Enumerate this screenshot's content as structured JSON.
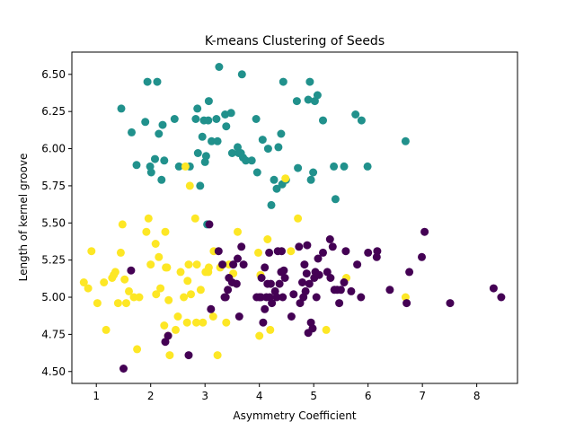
{
  "chart_data": {
    "type": "scatter",
    "title": "K-means Clustering of Seeds",
    "xlabel": "Asymmetry Coefficient",
    "ylabel": "Length of kernel groove",
    "xlim": [
      0.55,
      8.75
    ],
    "ylim": [
      4.42,
      6.65
    ],
    "x_ticks": [
      1,
      2,
      3,
      4,
      5,
      6,
      7,
      8
    ],
    "y_ticks": [
      4.5,
      4.75,
      5.0,
      5.25,
      5.5,
      5.75,
      6.0,
      6.25,
      6.5
    ],
    "x_tick_labels": [
      "1",
      "2",
      "3",
      "4",
      "5",
      "6",
      "7",
      "8"
    ],
    "y_tick_labels": [
      "4.50",
      "4.75",
      "5.00",
      "5.25",
      "5.50",
      "5.75",
      "6.00",
      "6.25",
      "6.50"
    ],
    "grid": false,
    "legend": "none",
    "colors": {
      "cluster_purple": "#440154",
      "cluster_teal": "#21918c",
      "cluster_yellow": "#fde725"
    },
    "series": [
      {
        "color": "#21918c",
        "points": [
          [
            1.46,
            6.27
          ],
          [
            1.65,
            6.11
          ],
          [
            1.74,
            5.89
          ],
          [
            1.9,
            6.18
          ],
          [
            1.94,
            6.45
          ],
          [
            1.99,
            5.88
          ],
          [
            2.01,
            5.84
          ],
          [
            2.08,
            5.93
          ],
          [
            2.12,
            6.45
          ],
          [
            2.15,
            6.1
          ],
          [
            2.2,
            5.79
          ],
          [
            2.22,
            6.16
          ],
          [
            2.25,
            5.92
          ],
          [
            2.44,
            6.2
          ],
          [
            2.52,
            5.88
          ],
          [
            2.72,
            5.88
          ],
          [
            2.83,
            6.2
          ],
          [
            2.86,
            6.27
          ],
          [
            2.87,
            5.97
          ],
          [
            2.91,
            5.75
          ],
          [
            2.95,
            6.08
          ],
          [
            2.98,
            6.19
          ],
          [
            3.0,
            5.91
          ],
          [
            3.02,
            5.95
          ],
          [
            3.04,
            5.49
          ],
          [
            3.06,
            6.19
          ],
          [
            3.07,
            6.32
          ],
          [
            3.12,
            6.05
          ],
          [
            3.21,
            6.2
          ],
          [
            3.23,
            6.05
          ],
          [
            3.26,
            6.55
          ],
          [
            3.37,
            6.23
          ],
          [
            3.39,
            6.15
          ],
          [
            3.48,
            6.24
          ],
          [
            3.5,
            5.97
          ],
          [
            3.6,
            6.01
          ],
          [
            3.62,
            5.97
          ],
          [
            3.66,
            5.97
          ],
          [
            3.68,
            6.5
          ],
          [
            3.7,
            5.94
          ],
          [
            3.75,
            5.92
          ],
          [
            3.86,
            5.92
          ],
          [
            3.94,
            6.2
          ],
          [
            3.96,
            5.84
          ],
          [
            4.06,
            6.06
          ],
          [
            4.16,
            6.0
          ],
          [
            4.22,
            5.62
          ],
          [
            4.27,
            5.79
          ],
          [
            4.32,
            5.73
          ],
          [
            4.35,
            6.01
          ],
          [
            4.4,
            6.1
          ],
          [
            4.42,
            5.76
          ],
          [
            4.44,
            6.45
          ],
          [
            4.49,
            5.79
          ],
          [
            4.69,
            6.32
          ],
          [
            4.71,
            5.87
          ],
          [
            4.9,
            6.33
          ],
          [
            4.93,
            6.45
          ],
          [
            4.95,
            5.79
          ],
          [
            4.99,
            5.84
          ],
          [
            5.02,
            6.32
          ],
          [
            5.07,
            6.36
          ],
          [
            5.17,
            6.19
          ],
          [
            5.37,
            5.88
          ],
          [
            5.4,
            5.66
          ],
          [
            5.56,
            5.88
          ],
          [
            5.77,
            6.23
          ],
          [
            5.88,
            6.19
          ],
          [
            5.99,
            5.88
          ],
          [
            6.69,
            6.05
          ]
        ]
      },
      {
        "color": "#fde725",
        "points": [
          [
            0.77,
            5.1
          ],
          [
            0.85,
            5.06
          ],
          [
            0.91,
            5.31
          ],
          [
            1.02,
            4.96
          ],
          [
            1.14,
            5.1
          ],
          [
            1.18,
            4.78
          ],
          [
            1.29,
            5.13
          ],
          [
            1.32,
            5.15
          ],
          [
            1.35,
            5.17
          ],
          [
            1.4,
            4.96
          ],
          [
            1.45,
            5.3
          ],
          [
            1.48,
            5.49
          ],
          [
            1.52,
            5.12
          ],
          [
            1.55,
            4.96
          ],
          [
            1.6,
            5.04
          ],
          [
            1.69,
            5.0
          ],
          [
            1.75,
            4.65
          ],
          [
            1.79,
            5.0
          ],
          [
            1.92,
            5.44
          ],
          [
            1.96,
            5.53
          ],
          [
            2.0,
            5.22
          ],
          [
            2.09,
            5.36
          ],
          [
            2.1,
            5.02
          ],
          [
            2.15,
            5.27
          ],
          [
            2.18,
            5.06
          ],
          [
            2.25,
            4.81
          ],
          [
            2.27,
            5.44
          ],
          [
            2.28,
            5.2
          ],
          [
            2.3,
            5.2
          ],
          [
            2.32,
            4.74
          ],
          [
            2.33,
            4.98
          ],
          [
            2.35,
            4.61
          ],
          [
            2.46,
            4.78
          ],
          [
            2.5,
            4.87
          ],
          [
            2.55,
            5.17
          ],
          [
            2.61,
            5.0
          ],
          [
            2.64,
            5.88
          ],
          [
            2.67,
            4.83
          ],
          [
            2.68,
            5.11
          ],
          [
            2.7,
            5.22
          ],
          [
            2.72,
            5.75
          ],
          [
            2.74,
            5.02
          ],
          [
            2.82,
            5.53
          ],
          [
            2.84,
            4.83
          ],
          [
            2.85,
            5.22
          ],
          [
            2.92,
            5.05
          ],
          [
            2.96,
            4.83
          ],
          [
            3.01,
            5.17
          ],
          [
            3.06,
            5.17
          ],
          [
            3.07,
            5.2
          ],
          [
            3.15,
            4.87
          ],
          [
            3.16,
            5.31
          ],
          [
            3.23,
            4.61
          ],
          [
            3.28,
            5.2
          ],
          [
            3.39,
            4.83
          ],
          [
            3.44,
            5.22
          ],
          [
            3.52,
            5.16
          ],
          [
            3.6,
            5.44
          ],
          [
            3.98,
            5.3
          ],
          [
            4.0,
            4.74
          ],
          [
            4.02,
            5.15
          ],
          [
            4.15,
            5.39
          ],
          [
            4.2,
            4.78
          ],
          [
            4.48,
            5.8
          ],
          [
            4.58,
            5.31
          ],
          [
            4.71,
            5.53
          ],
          [
            5.23,
            4.78
          ],
          [
            5.6,
            5.13
          ],
          [
            6.69,
            5.0
          ]
        ]
      },
      {
        "color": "#440154",
        "points": [
          [
            1.5,
            4.52
          ],
          [
            1.64,
            5.18
          ],
          [
            2.27,
            4.7
          ],
          [
            2.32,
            4.74
          ],
          [
            2.7,
            4.61
          ],
          [
            3.08,
            5.49
          ],
          [
            3.11,
            4.92
          ],
          [
            3.25,
            5.31
          ],
          [
            3.32,
            5.22
          ],
          [
            3.36,
            5.0
          ],
          [
            3.38,
            5.0
          ],
          [
            3.42,
            5.05
          ],
          [
            3.44,
            5.13
          ],
          [
            3.5,
            5.1
          ],
          [
            3.52,
            5.22
          ],
          [
            3.58,
            5.09
          ],
          [
            3.6,
            5.26
          ],
          [
            3.63,
            4.87
          ],
          [
            3.67,
            5.34
          ],
          [
            3.71,
            5.22
          ],
          [
            3.95,
            5.0
          ],
          [
            4.0,
            5.0
          ],
          [
            4.03,
            5.0
          ],
          [
            4.04,
            5.13
          ],
          [
            4.07,
            4.83
          ],
          [
            4.1,
            4.92
          ],
          [
            4.1,
            5.2
          ],
          [
            4.13,
            5.0
          ],
          [
            4.15,
            5.09
          ],
          [
            4.18,
            5.3
          ],
          [
            4.19,
            5.0
          ],
          [
            4.21,
            5.09
          ],
          [
            4.23,
            4.96
          ],
          [
            4.29,
            5.04
          ],
          [
            4.32,
            5.0
          ],
          [
            4.34,
            5.31
          ],
          [
            4.37,
            5.09
          ],
          [
            4.4,
            5.17
          ],
          [
            4.41,
            5.31
          ],
          [
            4.43,
            5.0
          ],
          [
            4.45,
            5.18
          ],
          [
            4.47,
            5.13
          ],
          [
            4.59,
            4.87
          ],
          [
            4.63,
            5.02
          ],
          [
            4.73,
            5.34
          ],
          [
            4.75,
            4.96
          ],
          [
            4.79,
            5.1
          ],
          [
            4.81,
            5.0
          ],
          [
            4.83,
            5.22
          ],
          [
            4.85,
            5.04
          ],
          [
            4.87,
            5.16
          ],
          [
            4.88,
            5.35
          ],
          [
            4.9,
            4.76
          ],
          [
            4.92,
            5.09
          ],
          [
            4.95,
            4.83
          ],
          [
            4.98,
            4.79
          ],
          [
            5.01,
            5.13
          ],
          [
            5.03,
            5.17
          ],
          [
            5.05,
            5.0
          ],
          [
            5.08,
            5.26
          ],
          [
            5.1,
            5.15
          ],
          [
            5.17,
            5.3
          ],
          [
            5.25,
            5.17
          ],
          [
            5.3,
            5.39
          ],
          [
            5.31,
            5.13
          ],
          [
            5.35,
            5.34
          ],
          [
            5.38,
            5.05
          ],
          [
            5.43,
            5.05
          ],
          [
            5.47,
            4.96
          ],
          [
            5.5,
            5.05
          ],
          [
            5.56,
            5.1
          ],
          [
            5.59,
            5.31
          ],
          [
            5.69,
            5.04
          ],
          [
            5.8,
            5.22
          ],
          [
            5.87,
            5.0
          ],
          [
            6.0,
            5.3
          ],
          [
            6.16,
            5.27
          ],
          [
            6.17,
            5.31
          ],
          [
            6.4,
            5.05
          ],
          [
            6.71,
            4.96
          ],
          [
            6.76,
            5.17
          ],
          [
            6.99,
            5.27
          ],
          [
            7.04,
            5.44
          ],
          [
            7.51,
            4.96
          ],
          [
            8.31,
            5.06
          ],
          [
            8.45,
            5.0
          ]
        ]
      }
    ]
  }
}
